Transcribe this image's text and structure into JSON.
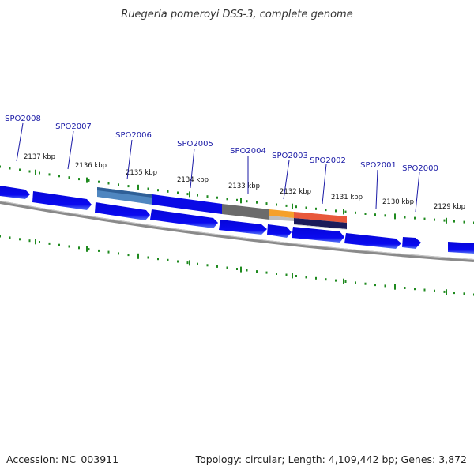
{
  "map": {
    "title": "Ruegeria pomeroyi DSS-3, complete genome",
    "accession": "Accession: NC_003911",
    "summary": "Topology: circular; Length: 4,109,442 bp; Genes: 3,872"
  },
  "scale_labels": [
    "2137 kbp",
    "2136 kbp",
    "2135 kbp",
    "2134 kbp",
    "2133 kbp",
    "2132 kbp",
    "2131 kbp",
    "2130 kbp",
    "2129 kbp"
  ],
  "gene_labels": [
    "SPO2008",
    "SPO2007",
    "SPO2006",
    "SPO2005",
    "SPO2004",
    "SPO2003",
    "SPO2002",
    "SPO2001",
    "SPO2000"
  ],
  "colors": {
    "gene": "#0a0ae6",
    "backbone": "#8a8a8a",
    "tick": "#1f8a1f",
    "label": "#1a1aa6",
    "feature_blue": "#4f86c0",
    "feature_gray": "#6b6b6b",
    "feature_orange": "#f5a02a",
    "feature_red": "#e8583a",
    "feature_navy": "#1b1b5a"
  }
}
